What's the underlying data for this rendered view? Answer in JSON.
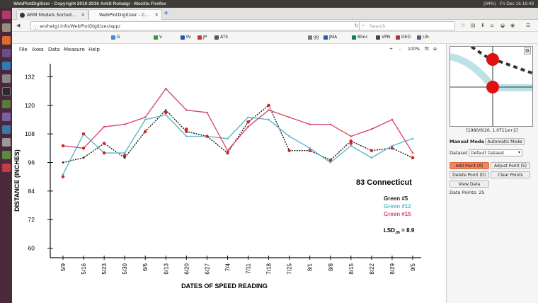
{
  "window": {
    "title": "WebPlotDigitizer - Copyright 2010-2016 Ankit Rohatgi - Mozilla Firefox",
    "tray_battery": "(94%)",
    "tray_clock": "Fri Dec 16 16:43"
  },
  "tabs": [
    {
      "label": "ARM Models Sorted..."
    },
    {
      "label": "WebPlotDigitizer - C..."
    }
  ],
  "navbar": {
    "url": "arohatgi.info/WebPlotDigitizer/app/",
    "search_placeholder": "Search"
  },
  "bookmarks": [
    {
      "label": "G"
    },
    {
      "label": "V"
    },
    {
      "label": "IN"
    },
    {
      "label": "JP"
    },
    {
      "label": "ATS"
    },
    {
      "label": "gg"
    },
    {
      "label": "JMA"
    },
    {
      "label": "Blinc"
    },
    {
      "label": "VPN"
    },
    {
      "label": "DED"
    },
    {
      "label": "Lib"
    }
  ],
  "app_menu": [
    "File",
    "Axes",
    "Data",
    "Measure",
    "Help"
  ],
  "zoom": {
    "plus": "+",
    "minus": "-",
    "level": "100%",
    "fit": "fit"
  },
  "side": {
    "zoom_coords": "[1980/6/20, 1.0711e+2]",
    "manual_label": "Manual Mode",
    "auto_button": "Automatic Mode",
    "dataset_label": "Dataset",
    "dataset_value": "Default Dataset",
    "add_point": "Add Point (A)",
    "adjust_point": "Adjust Point (S)",
    "delete_point": "Delete Point (D)",
    "clear_points": "Clear Points",
    "view_data": "View Data",
    "data_points": "Data Points: 25"
  },
  "colors": {
    "green5": "#1a1a1a",
    "green12": "#5bb8c8",
    "green15": "#d84a6e",
    "digitized": "#d42020",
    "button_active": "#f0855e"
  },
  "chart_data": {
    "type": "line",
    "title": "83 Connecticut",
    "xlabel": "DATES OF SPEED READING",
    "ylabel": "DISTANCE (INCHES)",
    "annotation": "LSD.05 = 8.9",
    "annotation_main": "LSD",
    "annotation_sub": ".05",
    "annotation_value": " = 8.9",
    "categories": [
      "5/9",
      "5/16",
      "5/23",
      "5/30",
      "6/6",
      "6/13",
      "6/20",
      "6/27",
      "7/4",
      "7/11",
      "7/18",
      "7/25",
      "8/1",
      "8/8",
      "8/15",
      "8/22",
      "8/29",
      "9/5"
    ],
    "yticks": [
      60,
      72,
      84,
      96,
      108,
      120,
      132
    ],
    "ylim": [
      56,
      136
    ],
    "grid": false,
    "legend_position": "right",
    "series": [
      {
        "name": "Green #5",
        "color": "#1a1a1a",
        "style": "dotted",
        "values": [
          96,
          98,
          104,
          98,
          109,
          118,
          109,
          107,
          100,
          113,
          120,
          101,
          101,
          97,
          105,
          101,
          102,
          98
        ]
      },
      {
        "name": "Green #12",
        "color": "#5bb8c8",
        "style": "solid",
        "values": [
          91,
          108,
          100,
          100,
          114,
          116,
          107,
          107,
          106,
          115,
          114,
          107,
          102,
          96,
          103,
          98,
          103,
          106
        ]
      },
      {
        "name": "Green #15",
        "color": "#d84a6e",
        "style": "solid",
        "values": [
          103,
          102,
          111,
          112,
          115,
          127,
          118,
          117,
          101,
          111,
          118,
          115,
          112,
          112,
          107,
          110,
          114,
          100
        ]
      }
    ],
    "digitized_points": [
      {
        "x": "5/9",
        "y": 90
      },
      {
        "x": "5/16",
        "y": 108
      },
      {
        "x": "5/23",
        "y": 100
      },
      {
        "x": "5/30",
        "y": 99
      },
      {
        "x": "6/6",
        "y": 109
      },
      {
        "x": "6/13",
        "y": 117
      },
      {
        "x": "6/20",
        "y": 110
      },
      {
        "x": "6/27",
        "y": 107
      },
      {
        "x": "7/4",
        "y": 100
      },
      {
        "x": "7/11",
        "y": 113
      },
      {
        "x": "7/18",
        "y": 120
      },
      {
        "x": "7/25",
        "y": 101
      },
      {
        "x": "8/1",
        "y": 101
      },
      {
        "x": "8/8",
        "y": 97
      },
      {
        "x": "8/15",
        "y": 105
      },
      {
        "x": "8/22",
        "y": 101
      },
      {
        "x": "8/29",
        "y": 102
      },
      {
        "x": "9/5",
        "y": 98
      },
      {
        "x": "5/9",
        "y": 103
      },
      {
        "x": "5/16",
        "y": 102
      },
      {
        "x": "5/23",
        "y": 104
      },
      {
        "x": "6/20",
        "y": 109
      },
      {
        "x": "7/11",
        "y": 113
      },
      {
        "x": "8/15",
        "y": 104
      },
      {
        "x": "9/5",
        "y": 98
      }
    ]
  }
}
